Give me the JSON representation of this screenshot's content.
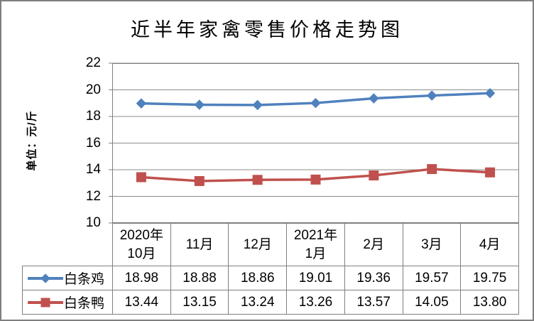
{
  "title": "近半年家禽零售价格走势图",
  "y_axis_title": "单位：元/斤",
  "colors": {
    "plot_border": "#7f7f7f",
    "gridline": "#8c8c8c",
    "table_border": "#7f7f7f",
    "series_chicken": "#4F81BD",
    "series_duck": "#C0504D"
  },
  "chart_data": {
    "type": "line",
    "title": "近半年家禽零售价格走势图",
    "ylabel": "单位：元/斤",
    "xlabel": "",
    "ylim": [
      10,
      22
    ],
    "yticks": [
      22,
      20,
      18,
      16,
      14,
      12,
      10
    ],
    "grid": true,
    "legend_position": "table-left",
    "categories": [
      [
        "2020年",
        "10月"
      ],
      [
        "11月"
      ],
      [
        "12月"
      ],
      [
        "2021年",
        "1月"
      ],
      [
        "2月"
      ],
      [
        "3月"
      ],
      [
        "4月"
      ]
    ],
    "series": [
      {
        "name": "白条鸡",
        "marker": "diamond",
        "color": "#4F81BD",
        "values": [
          18.98,
          18.88,
          18.86,
          19.01,
          19.36,
          19.57,
          19.75
        ],
        "display_values": [
          "18.98",
          "18.88",
          "18.86",
          "19.01",
          "19.36",
          "19.57",
          "19.75"
        ]
      },
      {
        "name": "白条鸭",
        "marker": "square",
        "color": "#C0504D",
        "values": [
          13.44,
          13.15,
          13.24,
          13.26,
          13.57,
          14.05,
          13.8
        ],
        "display_values": [
          "13.44",
          "13.15",
          "13.24",
          "13.26",
          "13.57",
          "14.05",
          "13.80"
        ]
      }
    ]
  }
}
